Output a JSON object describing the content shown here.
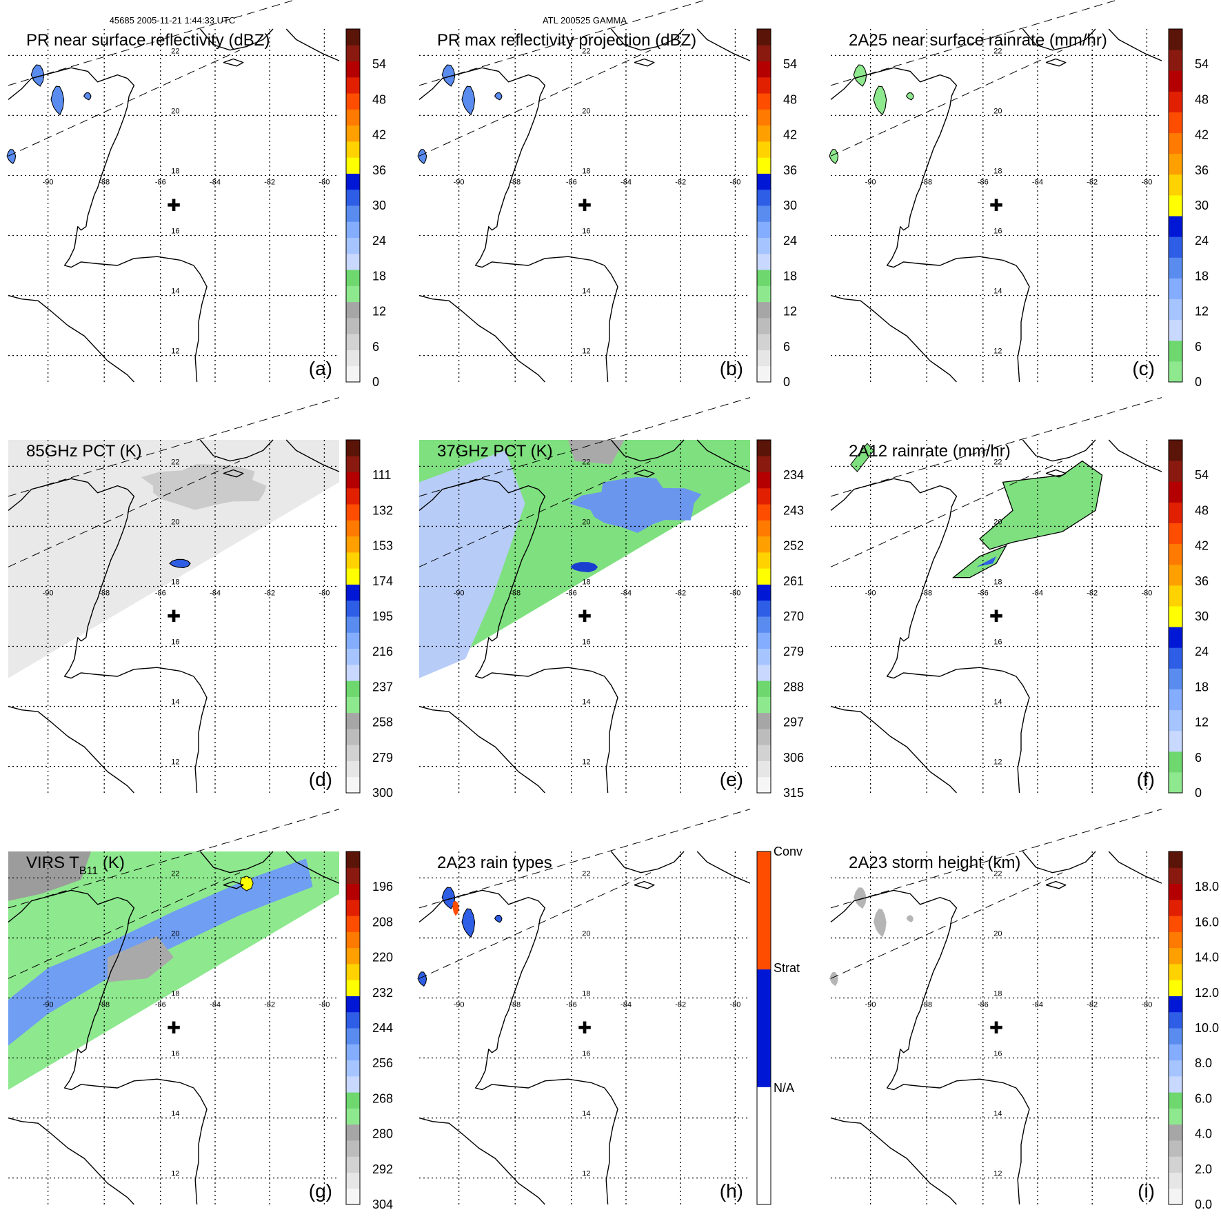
{
  "header": {
    "left": "45685 2005-11-21 1:44:33 UTC",
    "center": "ATL 200525 GAMMA"
  },
  "map": {
    "lon_labels": [
      "-90",
      "-88",
      "-86",
      "-84",
      "-82",
      "-80"
    ],
    "lat_labels": [
      "22",
      "20",
      "18",
      "16",
      "14",
      "12"
    ],
    "storm_center_symbol": "✚"
  },
  "panels": [
    {
      "id": "a",
      "title": "PR near surface reflectivity (dBZ)",
      "label": "(a)",
      "colorbar": [
        "54",
        "48",
        "42",
        "36",
        "30",
        "24",
        "18",
        "12",
        "6",
        "0"
      ],
      "scale": "refl"
    },
    {
      "id": "b",
      "title": "PR max reflectivity projection (dBZ)",
      "label": "(b)",
      "colorbar": [
        "54",
        "48",
        "42",
        "36",
        "30",
        "24",
        "18",
        "12",
        "6",
        "0"
      ],
      "scale": "refl"
    },
    {
      "id": "c",
      "title": "2A25 near surface rainrate (mm/hr)",
      "label": "(c)",
      "colorbar": [
        "54",
        "48",
        "42",
        "36",
        "30",
        "24",
        "18",
        "12",
        "6",
        "0"
      ],
      "scale": "rain"
    },
    {
      "id": "d",
      "title": "85GHz PCT (K)",
      "label": "(d)",
      "colorbar": [
        "111",
        "132",
        "153",
        "174",
        "195",
        "216",
        "237",
        "258",
        "279",
        "300"
      ],
      "scale": "tb"
    },
    {
      "id": "e",
      "title": "37GHz PCT (K)",
      "label": "(e)",
      "colorbar": [
        "234",
        "243",
        "252",
        "261",
        "270",
        "279",
        "288",
        "297",
        "306",
        "315"
      ],
      "scale": "tb"
    },
    {
      "id": "f",
      "title": "2A12 rainrate (mm/hr)",
      "label": "(f)",
      "colorbar": [
        "54",
        "48",
        "42",
        "36",
        "30",
        "24",
        "18",
        "12",
        "6",
        "0"
      ],
      "scale": "rain"
    },
    {
      "id": "g",
      "title": "VIRS T",
      "title_sub": "B11",
      "title_tail": " (K)",
      "label": "(g)",
      "colorbar": [
        "196",
        "208",
        "220",
        "232",
        "244",
        "256",
        "268",
        "280",
        "292",
        "304"
      ],
      "scale": "tb"
    },
    {
      "id": "h",
      "title": "2A23 rain types",
      "label": "(h)",
      "colorbar": [
        "Conv",
        "Strat",
        "N/A"
      ],
      "scale": "types"
    },
    {
      "id": "i",
      "title": "2A23 storm height (km)",
      "label": "(i)",
      "colorbar": [
        "18.0",
        "16.0",
        "14.0",
        "12.0",
        "10.0",
        "8.0",
        "6.0",
        "4.0",
        "2.0",
        "0.0"
      ],
      "scale": "refl"
    }
  ],
  "colors": {
    "refl": [
      "#f4f4f4",
      "#e6e6e6",
      "#d2d2d2",
      "#bcbcbc",
      "#a6a6a6",
      "#8ee88e",
      "#6ed86e",
      "#c8d8ff",
      "#a6c4ff",
      "#84adff",
      "#5a8cf0",
      "#2f5ee6",
      "#0018d6",
      "#ffff00",
      "#ffd200",
      "#ffa000",
      "#ff7a00",
      "#ff4d00",
      "#e02000",
      "#b40000",
      "#8a1a10",
      "#5a1408"
    ],
    "rain": [
      "#8ee88e",
      "#6ed86e",
      "#c8d8ff",
      "#a6c4ff",
      "#84adff",
      "#5a8cf0",
      "#2f5ee6",
      "#0018d6",
      "#ffff00",
      "#ffd200",
      "#ffa000",
      "#ff7a00",
      "#ff4d00",
      "#e02000",
      "#b40000",
      "#8a1a10",
      "#5a1408"
    ],
    "tb": [
      "#f6f6f6",
      "#e6e6e6",
      "#d2d2d2",
      "#bcbcbc",
      "#a6a6a6",
      "#8ee88e",
      "#6ed86e",
      "#c8d8ff",
      "#a6c4ff",
      "#84adff",
      "#5a8cf0",
      "#2f5ee6",
      "#0018d6",
      "#ffff00",
      "#ffd200",
      "#ffa000",
      "#ff7a00",
      "#ff4d00",
      "#e02000",
      "#b40000",
      "#8a1a10",
      "#5a1408"
    ],
    "types": [
      "#ffffff",
      "#0018d6",
      "#ff4d00"
    ]
  }
}
